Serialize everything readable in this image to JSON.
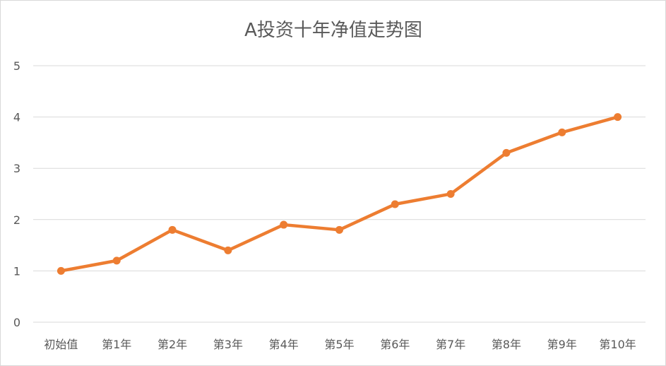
{
  "chart_data": {
    "type": "line",
    "title": "A投资十年净值走势图",
    "categories": [
      "初始值",
      "第1年",
      "第2年",
      "第3年",
      "第4年",
      "第5年",
      "第6年",
      "第7年",
      "第8年",
      "第9年",
      "第10年"
    ],
    "series": [
      {
        "values": [
          1.0,
          1.2,
          1.8,
          1.4,
          1.9,
          1.8,
          2.3,
          2.5,
          3.3,
          3.7,
          4.0
        ]
      }
    ],
    "ylim": [
      0,
      5
    ],
    "yticks": [
      0,
      1,
      2,
      3,
      4,
      5
    ],
    "grid": true,
    "legend": "none",
    "colors": {
      "series": "#ed7d31",
      "grid": "#d9d9d9",
      "text": "#595959"
    }
  }
}
